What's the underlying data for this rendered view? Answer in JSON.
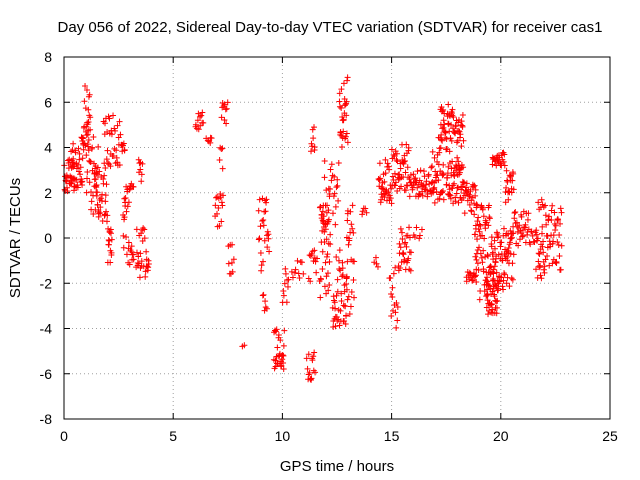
{
  "chart_data": {
    "type": "scatter",
    "title": "Day 056 of 2022, Sidereal Day-to-day VTEC variation (SDTVAR) for receiver cas1",
    "xlabel": "GPS time / hours",
    "ylabel": "SDTVAR / TECUs",
    "xlim": [
      0,
      25
    ],
    "ylim": [
      -8,
      8
    ],
    "xticks": [
      0,
      5,
      10,
      15,
      20,
      25
    ],
    "yticks": [
      -8,
      -6,
      -4,
      -2,
      0,
      2,
      4,
      6,
      8
    ],
    "grid": true,
    "marker": "+",
    "series_color": "#ff0000",
    "segments": [
      {
        "x0": 0.0,
        "x1": 0.5,
        "y0": 2.0,
        "y1": 3.5,
        "n": 30
      },
      {
        "x0": 0.3,
        "x1": 0.9,
        "y0": 2.2,
        "y1": 4.2,
        "n": 35
      },
      {
        "x0": 0.8,
        "x1": 1.2,
        "y0": 4.0,
        "y1": 7.0,
        "n": 25
      },
      {
        "x0": 1.0,
        "x1": 1.6,
        "y0": 1.0,
        "y1": 4.8,
        "n": 40
      },
      {
        "x0": 1.4,
        "x1": 2.0,
        "y0": 0.5,
        "y1": 3.5,
        "n": 30
      },
      {
        "x0": 1.8,
        "x1": 2.6,
        "y0": 3.0,
        "y1": 5.5,
        "n": 35
      },
      {
        "x0": 2.0,
        "x1": 2.2,
        "y0": -1.3,
        "y1": 0.5,
        "n": 15
      },
      {
        "x0": 2.6,
        "x1": 2.8,
        "y0": 3.8,
        "y1": 4.2,
        "n": 8
      },
      {
        "x0": 2.7,
        "x1": 3.2,
        "y0": -1.2,
        "y1": 2.5,
        "n": 35
      },
      {
        "x0": 3.3,
        "x1": 3.9,
        "y0": -1.8,
        "y1": 0.5,
        "n": 30
      },
      {
        "x0": 3.4,
        "x1": 3.6,
        "y0": 2.5,
        "y1": 3.5,
        "n": 8
      },
      {
        "x0": 6.0,
        "x1": 6.4,
        "y0": 4.8,
        "y1": 5.6,
        "n": 12
      },
      {
        "x0": 6.5,
        "x1": 6.8,
        "y0": 4.2,
        "y1": 4.6,
        "n": 6
      },
      {
        "x0": 6.9,
        "x1": 7.3,
        "y0": 0.3,
        "y1": 2.0,
        "n": 15
      },
      {
        "x0": 7.1,
        "x1": 7.3,
        "y0": 3.0,
        "y1": 4.0,
        "n": 5
      },
      {
        "x0": 7.2,
        "x1": 7.5,
        "y0": 5.0,
        "y1": 6.0,
        "n": 10
      },
      {
        "x0": 7.5,
        "x1": 7.7,
        "y0": -0.5,
        "y1": -0.2,
        "n": 3
      },
      {
        "x0": 7.5,
        "x1": 7.8,
        "y0": -1.6,
        "y1": -0.9,
        "n": 6
      },
      {
        "x0": 8.1,
        "x1": 8.3,
        "y0": -4.8,
        "y1": -4.6,
        "n": 2
      },
      {
        "x0": 8.9,
        "x1": 9.4,
        "y0": -1.6,
        "y1": 1.8,
        "n": 25
      },
      {
        "x0": 9.1,
        "x1": 9.3,
        "y0": -3.5,
        "y1": -2.5,
        "n": 6
      },
      {
        "x0": 9.6,
        "x1": 10.1,
        "y0": -5.8,
        "y1": -4.0,
        "n": 30
      },
      {
        "x0": 10.0,
        "x1": 10.3,
        "y0": -3.0,
        "y1": -1.2,
        "n": 10
      },
      {
        "x0": 10.4,
        "x1": 11.0,
        "y0": -2.0,
        "y1": -1.0,
        "n": 10
      },
      {
        "x0": 11.1,
        "x1": 11.5,
        "y0": -6.3,
        "y1": -5.0,
        "n": 15
      },
      {
        "x0": 11.2,
        "x1": 11.6,
        "y0": -2.0,
        "y1": -0.5,
        "n": 12
      },
      {
        "x0": 11.3,
        "x1": 11.5,
        "y0": 3.0,
        "y1": 5.2,
        "n": 8
      },
      {
        "x0": 11.7,
        "x1": 12.2,
        "y0": -3.0,
        "y1": 2.0,
        "n": 40
      },
      {
        "x0": 11.8,
        "x1": 12.6,
        "y0": 0.5,
        "y1": 3.5,
        "n": 30
      },
      {
        "x0": 12.3,
        "x1": 13.0,
        "y0": -4.0,
        "y1": -0.5,
        "n": 45
      },
      {
        "x0": 12.6,
        "x1": 13.0,
        "y0": 4.0,
        "y1": 7.2,
        "n": 30
      },
      {
        "x0": 12.9,
        "x1": 13.3,
        "y0": -3.5,
        "y1": 1.5,
        "n": 25
      },
      {
        "x0": 13.6,
        "x1": 13.9,
        "y0": 1.0,
        "y1": 1.6,
        "n": 5
      },
      {
        "x0": 14.2,
        "x1": 14.4,
        "y0": -1.3,
        "y1": -0.7,
        "n": 4
      },
      {
        "x0": 14.4,
        "x1": 15.0,
        "y0": 1.5,
        "y1": 3.5,
        "n": 35
      },
      {
        "x0": 14.9,
        "x1": 15.3,
        "y0": -4.0,
        "y1": -1.2,
        "n": 15
      },
      {
        "x0": 15.0,
        "x1": 15.8,
        "y0": 2.0,
        "y1": 4.2,
        "n": 45
      },
      {
        "x0": 15.3,
        "x1": 15.9,
        "y0": -1.5,
        "y1": 0.5,
        "n": 30
      },
      {
        "x0": 15.8,
        "x1": 16.8,
        "y0": 1.8,
        "y1": 3.0,
        "n": 45
      },
      {
        "x0": 16.0,
        "x1": 16.4,
        "y0": -0.3,
        "y1": 0.5,
        "n": 6
      },
      {
        "x0": 16.8,
        "x1": 17.4,
        "y0": 1.5,
        "y1": 4.5,
        "n": 40
      },
      {
        "x0": 17.2,
        "x1": 17.8,
        "y0": 3.8,
        "y1": 5.9,
        "n": 40
      },
      {
        "x0": 17.5,
        "x1": 18.2,
        "y0": 1.5,
        "y1": 3.5,
        "n": 45
      },
      {
        "x0": 17.8,
        "x1": 18.3,
        "y0": 4.0,
        "y1": 5.5,
        "n": 25
      },
      {
        "x0": 18.0,
        "x1": 18.3,
        "y0": 2.8,
        "y1": 3.6,
        "n": 6
      },
      {
        "x0": 18.2,
        "x1": 18.9,
        "y0": 1.0,
        "y1": 2.5,
        "n": 35
      },
      {
        "x0": 18.4,
        "x1": 18.9,
        "y0": -2.0,
        "y1": -1.4,
        "n": 15
      },
      {
        "x0": 18.8,
        "x1": 19.5,
        "y0": -2.8,
        "y1": 1.5,
        "n": 60
      },
      {
        "x0": 19.3,
        "x1": 19.9,
        "y0": -3.4,
        "y1": -1.8,
        "n": 45
      },
      {
        "x0": 19.5,
        "x1": 20.0,
        "y0": -2.0,
        "y1": 0.3,
        "n": 35
      },
      {
        "x0": 19.6,
        "x1": 20.2,
        "y0": 3.2,
        "y1": 3.8,
        "n": 25
      },
      {
        "x0": 20.0,
        "x1": 20.6,
        "y0": -2.3,
        "y1": 0.5,
        "n": 45
      },
      {
        "x0": 20.2,
        "x1": 20.6,
        "y0": 1.5,
        "y1": 3.0,
        "n": 20
      },
      {
        "x0": 20.6,
        "x1": 21.3,
        "y0": -0.5,
        "y1": 1.2,
        "n": 30
      },
      {
        "x0": 21.3,
        "x1": 21.6,
        "y0": -0.5,
        "y1": 0.3,
        "n": 8
      },
      {
        "x0": 21.6,
        "x1": 22.0,
        "y0": -1.8,
        "y1": 0.5,
        "n": 25
      },
      {
        "x0": 21.7,
        "x1": 22.0,
        "y0": 1.2,
        "y1": 1.7,
        "n": 6
      },
      {
        "x0": 22.0,
        "x1": 22.8,
        "y0": -1.5,
        "y1": 1.5,
        "n": 45
      }
    ]
  }
}
